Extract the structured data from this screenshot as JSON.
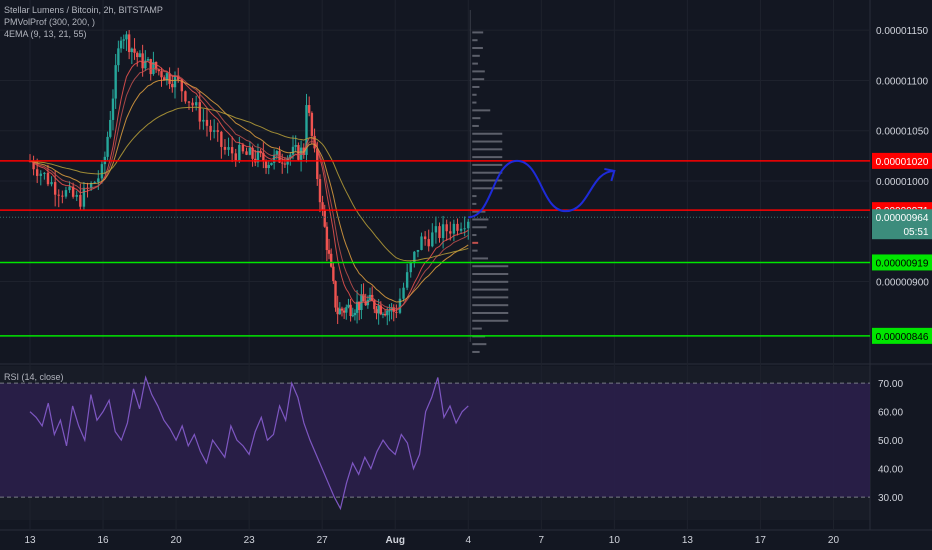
{
  "legend": {
    "symbol": "Stellar Lumens / Bitcoin, 2h, BITSTAMP",
    "indicator1": "PMVolProf (300, 200, )",
    "indicator2": "4EMA (9, 13, 21, 55)"
  },
  "rsi_legend": "RSI (14, close)",
  "colors": {
    "background": "#131722",
    "up_candle": "#26a69a",
    "down_candle": "#ef5350",
    "resistance": "#ff0000",
    "support": "#00e600",
    "projection": "#1e2bd8",
    "rsi_line": "#7e57c2",
    "rsi_band": "#2a1f4a",
    "ema_fast": "#ef5350",
    "ema_slow": "#b8a038",
    "volume_profile": "#5d606b"
  },
  "chart_data": [
    {
      "type": "candlestick",
      "title": "Stellar Lumens / Bitcoin, 2h, BITSTAMP",
      "y_axis_ticks": [
        "0.00001150",
        "0.00001100",
        "0.00001050",
        "0.00001000",
        "0.00000900"
      ],
      "ylim": [
        8.2e-06,
        1.18e-05
      ],
      "x_axis_ticks": [
        "13",
        "16",
        "20",
        "23",
        "27",
        "Aug",
        "4",
        "7",
        "10",
        "13",
        "17",
        "20"
      ],
      "horizontal_levels": [
        {
          "value": 1.02e-05,
          "label": "0.00001020",
          "color": "#ff0000"
        },
        {
          "value": 9.71e-06,
          "label": "0.00000971",
          "color": "#ff0000"
        },
        {
          "value": 9.19e-06,
          "label": "0.00000919",
          "color": "#00e600"
        },
        {
          "value": 8.46e-06,
          "label": "0.00000846",
          "color": "#00e600"
        }
      ],
      "current_price": {
        "value": 9.64e-06,
        "label": "0.00000964",
        "countdown": "05:51"
      },
      "price_path": [
        {
          "day": "13",
          "price": 1.02e-05
        },
        {
          "day": "14",
          "price": 9.95e-06
        },
        {
          "day": "15",
          "price": 9.8e-06
        },
        {
          "day": "16",
          "price": 1.01e-05
        },
        {
          "day": "17",
          "price": 1.15e-05
        },
        {
          "day": "18",
          "price": 1.12e-05
        },
        {
          "day": "20",
          "price": 1.1e-05
        },
        {
          "day": "22",
          "price": 1.03e-05
        },
        {
          "day": "24",
          "price": 1.02e-05
        },
        {
          "day": "26",
          "price": 1.03e-05
        },
        {
          "day": "26",
          "price": 1.1e-05
        },
        {
          "day": "27",
          "price": 9.7e-06
        },
        {
          "day": "28",
          "price": 8.7e-06
        },
        {
          "day": "30",
          "price": 8.8e-06
        },
        {
          "day": "1",
          "price": 8.7e-06
        },
        {
          "day": "2",
          "price": 9.4e-06
        },
        {
          "day": "3",
          "price": 9.5e-06
        },
        {
          "day": "4",
          "price": 9.64e-06
        }
      ],
      "projection": [
        {
          "day": "4",
          "price": 9.64e-06
        },
        {
          "day": "6",
          "price": 1.02e-05
        },
        {
          "day": "8",
          "price": 9.7e-06
        },
        {
          "day": "10",
          "price": 1.01e-05
        }
      ]
    },
    {
      "type": "line",
      "title": "RSI (14, close)",
      "y_axis_ticks": [
        "70.00",
        "60.00",
        "50.00",
        "40.00",
        "30.00"
      ],
      "ylim": [
        22,
        76
      ],
      "bands": [
        30,
        70
      ],
      "series": [
        {
          "values": [
            60,
            58,
            55,
            63,
            52,
            57,
            48,
            62,
            55,
            50,
            66,
            57,
            60,
            64,
            53,
            50,
            56,
            68,
            61,
            72,
            66,
            62,
            57,
            54,
            50,
            55,
            48,
            52,
            46,
            42,
            50,
            47,
            44,
            55,
            50,
            48,
            45,
            53,
            58,
            50,
            52,
            62,
            57,
            70,
            65,
            56,
            50,
            45,
            40,
            35,
            30,
            26,
            35,
            42,
            38,
            44,
            40,
            46,
            50,
            47,
            45,
            52,
            49,
            40,
            45,
            60,
            65,
            72,
            58,
            62,
            56,
            60,
            62
          ]
        }
      ]
    }
  ]
}
